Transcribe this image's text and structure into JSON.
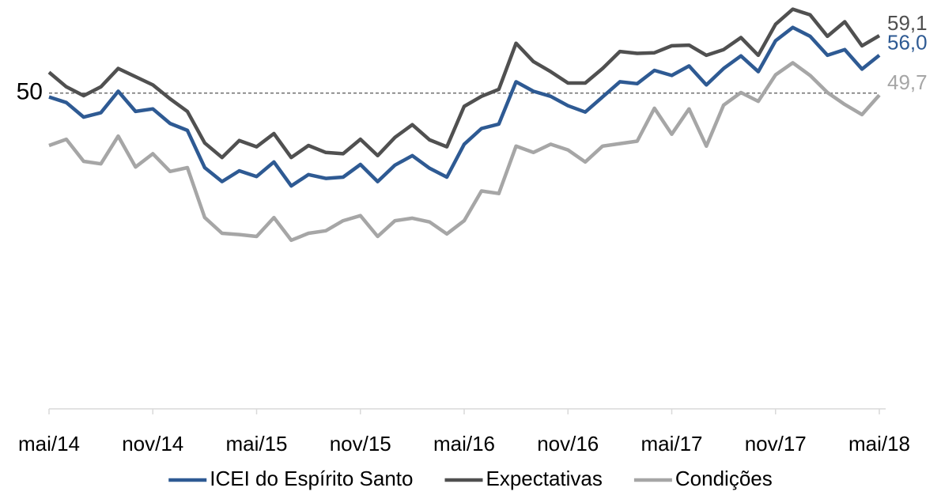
{
  "chart_data": {
    "type": "line",
    "categories": [
      "mai/14",
      null,
      null,
      null,
      null,
      null,
      "nov/14",
      null,
      null,
      null,
      null,
      null,
      "mai/15",
      null,
      null,
      null,
      null,
      null,
      "nov/15",
      null,
      null,
      null,
      null,
      null,
      "mai/16",
      null,
      null,
      null,
      null,
      null,
      "nov/16",
      null,
      null,
      null,
      null,
      null,
      "mai/17",
      null,
      null,
      null,
      null,
      null,
      "nov/17",
      null,
      null,
      null,
      null,
      null,
      "mai/18"
    ],
    "series": [
      {
        "name": "ICEI do Espírito Santo",
        "color": "#2e5a93",
        "values": [
          49.4,
          48.5,
          46.2,
          46.9,
          50.3,
          47.1,
          47.5,
          45.2,
          44.1,
          38.2,
          36.0,
          37.7,
          36.8,
          39.1,
          35.3,
          37.1,
          36.5,
          36.7,
          38.7,
          36.0,
          38.6,
          40.1,
          38.1,
          36.7,
          41.9,
          44.4,
          45.1,
          51.8,
          50.3,
          49.5,
          48.0,
          47.0,
          49.4,
          51.8,
          51.5,
          53.6,
          52.8,
          54.3,
          51.3,
          53.9,
          55.9,
          53.4,
          58.3,
          60.4,
          59.0,
          56.0,
          56.9,
          53.8,
          56.0
        ],
        "value_labels": [
          null,
          null,
          null,
          null,
          null,
          null,
          null,
          null,
          null,
          null,
          null,
          null,
          null,
          null,
          null,
          null,
          null,
          null,
          null,
          null,
          null,
          null,
          null,
          null,
          null,
          null,
          null,
          null,
          null,
          null,
          null,
          null,
          null,
          null,
          null,
          null,
          null,
          null,
          null,
          null,
          null,
          null,
          null,
          null,
          null,
          null,
          null,
          null,
          "56,0"
        ]
      },
      {
        "name": "Expectativas",
        "color": "#505050",
        "values": [
          53.3,
          51.0,
          49.6,
          51.0,
          53.9,
          52.6,
          51.3,
          49.1,
          47.1,
          42.1,
          39.8,
          42.5,
          41.5,
          43.6,
          39.8,
          41.7,
          40.6,
          40.4,
          42.7,
          40.1,
          43.0,
          45.0,
          42.6,
          41.5,
          47.9,
          49.5,
          50.6,
          57.9,
          55.0,
          53.4,
          51.6,
          51.6,
          53.9,
          56.6,
          56.3,
          56.4,
          57.5,
          57.6,
          56.0,
          56.9,
          58.8,
          56.0,
          60.9,
          63.3,
          62.4,
          59.0,
          61.3,
          57.5,
          59.1
        ],
        "value_labels": [
          null,
          null,
          null,
          null,
          null,
          null,
          null,
          null,
          null,
          null,
          null,
          null,
          null,
          null,
          null,
          null,
          null,
          null,
          null,
          null,
          null,
          null,
          null,
          null,
          null,
          null,
          null,
          null,
          null,
          null,
          null,
          null,
          null,
          null,
          null,
          null,
          null,
          null,
          null,
          null,
          null,
          null,
          null,
          null,
          null,
          null,
          null,
          null,
          "59,1"
        ]
      },
      {
        "name": "Condições",
        "color": "#a6a6a6",
        "values": [
          41.7,
          42.7,
          39.2,
          38.8,
          43.2,
          38.3,
          40.4,
          37.6,
          38.2,
          30.3,
          27.8,
          27.6,
          27.3,
          30.3,
          26.7,
          27.8,
          28.2,
          29.8,
          30.6,
          27.3,
          29.8,
          30.2,
          29.6,
          27.7,
          29.8,
          34.5,
          34.1,
          41.6,
          40.6,
          41.9,
          41.0,
          39.1,
          41.6,
          42.0,
          42.4,
          47.6,
          43.5,
          47.5,
          41.6,
          48.1,
          50.1,
          48.7,
          52.9,
          54.8,
          52.8,
          50.1,
          48.2,
          46.6,
          49.7
        ],
        "value_labels": [
          null,
          null,
          null,
          null,
          null,
          null,
          null,
          null,
          null,
          null,
          null,
          null,
          null,
          null,
          null,
          null,
          null,
          null,
          null,
          null,
          null,
          null,
          null,
          null,
          null,
          null,
          null,
          null,
          null,
          null,
          null,
          null,
          null,
          null,
          null,
          null,
          null,
          null,
          null,
          null,
          null,
          null,
          null,
          null,
          null,
          null,
          null,
          null,
          "49,7"
        ]
      }
    ],
    "ylim": [
      0,
      65
    ],
    "yticks": [
      50
    ],
    "grid": true,
    "grid_style": "dashed",
    "legend": "bottom"
  }
}
